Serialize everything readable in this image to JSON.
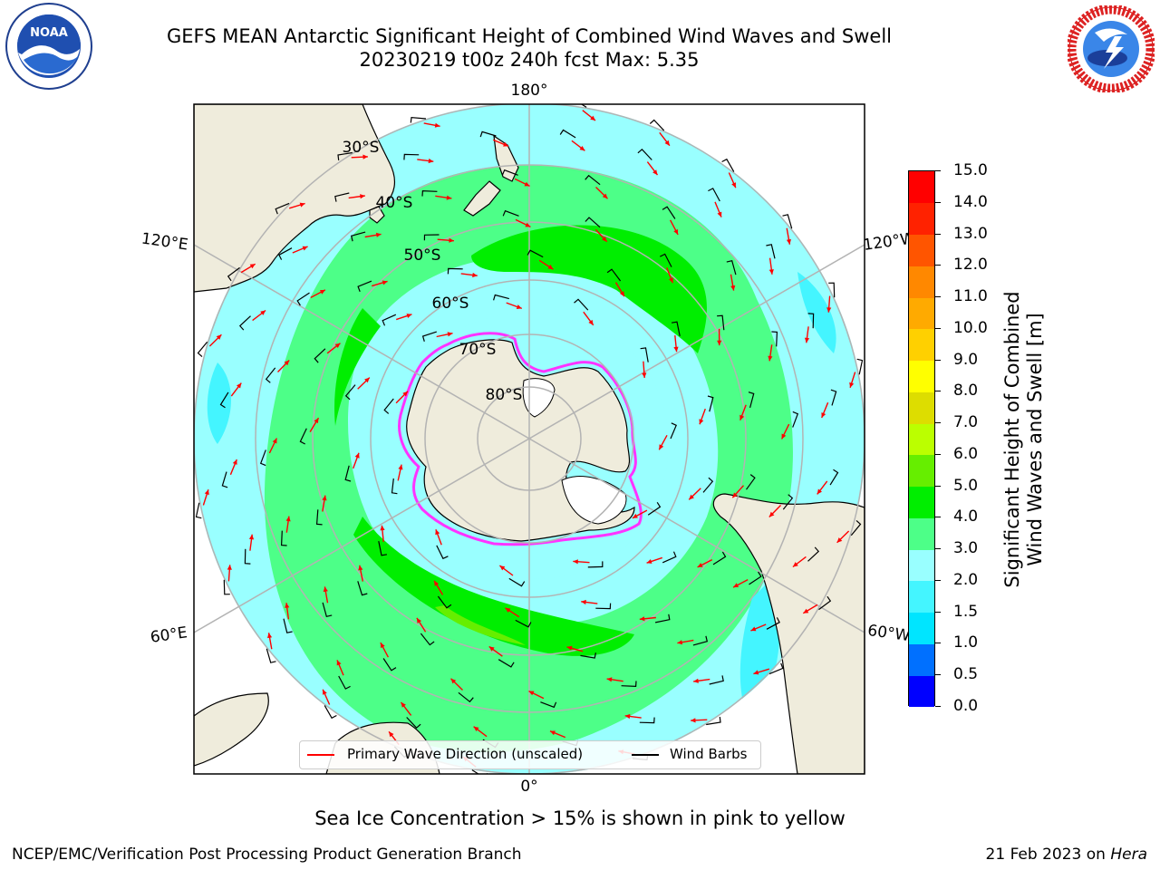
{
  "title": {
    "line1": "GEFS MEAN Antarctic Significant Height of Combined Wind Waves and Swell",
    "line2": "20230219 t00z 240h fcst   Max: 5.35"
  },
  "logos": {
    "left": {
      "icon": "noaa-logo",
      "text": "NOAA"
    },
    "right": {
      "icon": "national-weather-service-logo"
    }
  },
  "map": {
    "projection": "south-polar-stereographic",
    "longitude_labels": [
      "180°",
      "120°E",
      "120°W",
      "60°E",
      "60°W",
      "0°"
    ],
    "latitude_labels": [
      "30°S",
      "40°S",
      "50°S",
      "60°S",
      "70°S",
      "80°S"
    ],
    "colors": {
      "land": "#efecdc",
      "ice_shelf": "#ffffff",
      "sea_ice_edge": "#ff33ff",
      "wave_arrow": "#ff0000",
      "wind_barb": "#000000",
      "grid": "#b3b3b3"
    }
  },
  "legend": {
    "wave_label": "Primary Wave Direction (unscaled)",
    "wind_label": "Wind Barbs"
  },
  "colorbar": {
    "label_line1": "Significant Height of Combined",
    "label_line2": "Wind Waves and Swell [m]",
    "ticks": [
      "0.0",
      "0.5",
      "1.0",
      "1.5",
      "2.0",
      "3.0",
      "4.0",
      "5.0",
      "6.0",
      "7.0",
      "8.0",
      "9.0",
      "10.0",
      "11.0",
      "12.0",
      "13.0",
      "14.0",
      "15.0"
    ],
    "levels": [
      0,
      0.5,
      1.0,
      1.5,
      2.0,
      3.0,
      4.0,
      5.0,
      6.0,
      7.0,
      8.0,
      9.0,
      10.0,
      11.0,
      12.0,
      13.0,
      14.0,
      15.0
    ],
    "colors": [
      "#0000ff",
      "#0070ff",
      "#00e5ff",
      "#44f5ff",
      "#99ffff",
      "#4dff88",
      "#00ee00",
      "#66ee00",
      "#bbff00",
      "#dddd00",
      "#ffff00",
      "#ffd000",
      "#ffaa00",
      "#ff8800",
      "#ff5500",
      "#ff2200",
      "#ff0000"
    ]
  },
  "note": "Sea Ice Concentration > 15% is shown in pink to yellow",
  "footer": {
    "left": "NCEP/EMC/Verification Post Processing Product Generation Branch",
    "right_date": "21 Feb 2023 on ",
    "right_host": "Hera"
  }
}
